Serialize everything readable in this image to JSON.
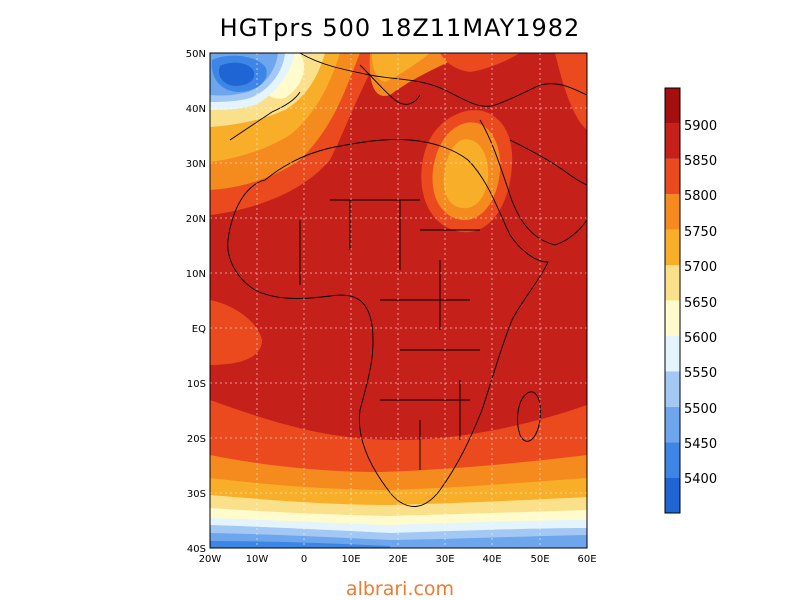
{
  "title": "HGTprs 500 18Z11MAY1982",
  "watermark": "albrari.com",
  "map": {
    "lat_ticks": [
      "50N",
      "40N",
      "30N",
      "20N",
      "10N",
      "EQ",
      "10S",
      "20S",
      "30S",
      "40S"
    ],
    "lon_ticks": [
      "20W",
      "10W",
      "0",
      "10E",
      "20E",
      "30E",
      "40E",
      "50E",
      "60E"
    ],
    "lat_range": [
      -40,
      50
    ],
    "lon_range": [
      -20,
      60
    ]
  },
  "colorbar": {
    "levels": [
      "5400",
      "5450",
      "5500",
      "5550",
      "5600",
      "5650",
      "5700",
      "5750",
      "5800",
      "5850",
      "5900"
    ],
    "colors": [
      "#1f66d4",
      "#3d86e6",
      "#6ea6ee",
      "#a3c8f3",
      "#e3f4fd",
      "#fffbcc",
      "#fbe08c",
      "#f8ae28",
      "#f58a1f",
      "#ea4a1e",
      "#c5201a",
      "#a5100f"
    ]
  }
}
